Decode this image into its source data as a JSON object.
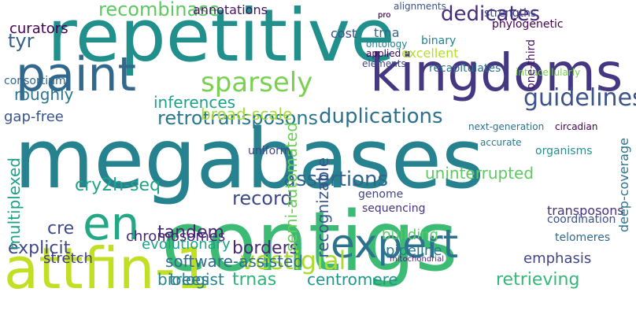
{
  "words": [
    {
      "text": "repetitive",
      "color": "#21908d"
    },
    {
      "text": "megabases",
      "color": "#26828e"
    },
    {
      "text": "contigs",
      "color": "#3cbb75"
    },
    {
      "text": "kingdoms",
      "color": "#453781"
    },
    {
      "text": "paint",
      "color": "#31688e"
    },
    {
      "text": "en",
      "color": "#22a884"
    },
    {
      "text": "attfin-1",
      "color": "#c2df23"
    },
    {
      "text": "expert",
      "color": "#2c728e"
    },
    {
      "text": "sparsely",
      "color": "#7ad151"
    },
    {
      "text": "guidelines",
      "color": "#3b528b"
    },
    {
      "text": "duplications",
      "color": "#2d708e"
    },
    {
      "text": "retrotransposons",
      "color": "#2a788e"
    },
    {
      "text": "dedicates",
      "color": "#472c7a"
    },
    {
      "text": "uninterrupted",
      "color": "#5ec962"
    },
    {
      "text": "assertions",
      "color": "#32648e"
    },
    {
      "text": "record",
      "color": "#3e4989"
    },
    {
      "text": "cry2h-seq",
      "color": "#20a386"
    },
    {
      "text": "tandem",
      "color": "#482475"
    },
    {
      "text": "borders",
      "color": "#482979"
    },
    {
      "text": "explicit",
      "color": "#3f4788"
    },
    {
      "text": "cre",
      "color": "#3e4a89"
    },
    {
      "text": "vestigial",
      "color": "#addc30"
    },
    {
      "text": "centromere",
      "color": "#1f988b"
    },
    {
      "text": "retrieving",
      "color": "#35b779"
    },
    {
      "text": "software-assisted",
      "color": "#2f6c8e"
    },
    {
      "text": "trnas",
      "color": "#2eb37c"
    },
    {
      "text": "biologist",
      "color": "#25858e"
    },
    {
      "text": "trees",
      "color": "#287c8e"
    },
    {
      "text": "emphasis",
      "color": "#414487"
    },
    {
      "text": "curators",
      "color": "#440154"
    },
    {
      "text": "recombinase",
      "color": "#5ec962"
    },
    {
      "text": "tyr",
      "color": "#355f8d"
    },
    {
      "text": "roughly",
      "color": "#2a768e"
    },
    {
      "text": "inferences",
      "color": "#1fa088"
    },
    {
      "text": "gap-free",
      "color": "#3a548c"
    },
    {
      "text": "broad-scale",
      "color": "#a5db36"
    },
    {
      "text": "chromosomes",
      "color": "#482878"
    },
    {
      "text": "evolutionary",
      "color": "#1fa188"
    },
    {
      "text": "stretch",
      "color": "#433e85"
    },
    {
      "text": "pipeline",
      "color": "#29798e"
    },
    {
      "text": "building",
      "color": "#5ac864"
    },
    {
      "text": "multiplexed",
      "color": "#1f9f88"
    },
    {
      "text": "semi-automated",
      "color": "#6ccd5a"
    },
    {
      "text": "recognizable",
      "color": "#3a548c"
    },
    {
      "text": "transposons",
      "color": "#46337e"
    },
    {
      "text": "annotations",
      "color": "#471365"
    },
    {
      "text": "cost",
      "color": "#3b528b"
    },
    {
      "text": "trna",
      "color": "#31688e"
    },
    {
      "text": "binary",
      "color": "#26828e"
    },
    {
      "text": "excellent",
      "color": "#b5de2b"
    },
    {
      "text": "strengths",
      "color": "#3e4989"
    },
    {
      "text": "alignments",
      "color": "#3b528b"
    },
    {
      "text": "phylogenetic",
      "color": "#440154"
    },
    {
      "text": "ontology",
      "color": "#27808e"
    },
    {
      "text": "applied",
      "color": "#440154"
    },
    {
      "text": "elements",
      "color": "#3e4989"
    },
    {
      "text": "recapitulates",
      "color": "#2d708e"
    },
    {
      "text": "intracellularly",
      "color": "#7ad151"
    },
    {
      "text": "consortium",
      "color": "#31688e"
    },
    {
      "text": "one-third",
      "color": "#471365"
    },
    {
      "text": "deep-coverage",
      "color": "#2c728e"
    },
    {
      "text": "uniform",
      "color": "#414487"
    },
    {
      "text": "genome",
      "color": "#414487"
    },
    {
      "text": "sequencing",
      "color": "#46327e"
    },
    {
      "text": "coordination",
      "color": "#3b528b"
    },
    {
      "text": "next-generation",
      "color": "#2d708e"
    },
    {
      "text": "circadian",
      "color": "#440154"
    },
    {
      "text": "accurate",
      "color": "#2a788e"
    },
    {
      "text": "organisms",
      "color": "#21918c"
    },
    {
      "text": "mitochondrial",
      "color": "#482878"
    },
    {
      "text": "telomeres",
      "color": "#31688e"
    },
    {
      "text": "pro",
      "color": "#440154"
    },
    {
      "text": "pro",
      "color": "#440154"
    }
  ]
}
